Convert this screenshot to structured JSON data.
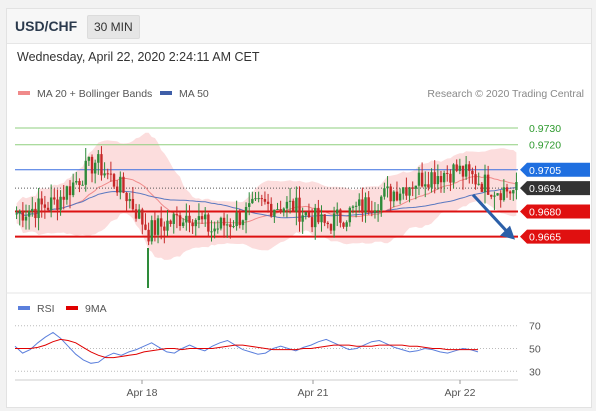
{
  "header": {
    "pair": "USD/CHF",
    "timeframe": "30 MIN"
  },
  "date_line": "Wednesday, April 22, 2020 2:24:11 AM CET",
  "legend": {
    "items": [
      {
        "label": "MA 20 + Bollinger Bands",
        "color": "#f08a8a"
      },
      {
        "label": "MA 50",
        "color": "#3f5fa8"
      }
    ],
    "credit": "Research © 2020 Trading Central"
  },
  "colors": {
    "bull": "#2e8b3a",
    "bear": "#c62828",
    "bb_fill": "#fbd5d5",
    "ma20": "#f08a8a",
    "ma50": "#5a78c0",
    "support": "#dd1111",
    "resistance_green": "#8fcf7f",
    "resistance_blue": "#3a6ee0",
    "last_price_bg": "#333333",
    "arrow": "#2b5fa8",
    "rsi": "#5b7fdc",
    "rsi_ma": "#e00000"
  },
  "chart_data": [
    {
      "type": "candlestick",
      "title": "USD/CHF 30 MIN",
      "ylim": [
        0.9636,
        0.9742
      ],
      "x_ticks": [
        "Apr 18",
        "Apr 21",
        "Apr 22"
      ],
      "levels": [
        {
          "value": 0.973,
          "label": "0.9730",
          "kind": "resistance"
        },
        {
          "value": 0.972,
          "label": "0.9720",
          "kind": "resistance"
        },
        {
          "value": 0.9705,
          "label": "0.9705",
          "kind": "pivot"
        },
        {
          "value": 0.9694,
          "label": "0.9694",
          "kind": "last"
        },
        {
          "value": 0.968,
          "label": "0.9680",
          "kind": "support"
        },
        {
          "value": 0.9665,
          "label": "0.9665",
          "kind": "support"
        }
      ],
      "forecast": {
        "from": 0.969,
        "to": 0.9665
      },
      "series": [
        {
          "name": "MA 20 + Bollinger Bands"
        },
        {
          "name": "MA 50"
        }
      ]
    },
    {
      "type": "line",
      "y_ticks": [
        "70",
        "50",
        "30"
      ],
      "ylim": [
        25,
        75
      ],
      "series": [
        {
          "name": "RSI",
          "values": [
            52,
            46,
            49,
            55,
            60,
            64,
            59,
            52,
            45,
            40,
            37,
            38,
            43,
            46,
            44,
            47,
            49,
            52,
            55,
            51,
            47,
            46,
            50,
            53,
            50,
            48,
            52,
            55,
            57,
            53,
            49,
            47,
            45,
            46,
            50,
            52,
            50,
            48,
            51,
            53,
            56,
            58,
            55,
            52,
            49,
            50,
            53,
            56,
            57,
            54,
            51,
            49,
            47,
            48,
            50,
            49,
            47,
            46,
            48,
            50,
            49,
            47
          ]
        },
        {
          "name": "9MA",
          "values": [
            50,
            50,
            50,
            51,
            53,
            56,
            58,
            57,
            55,
            51,
            47,
            44,
            42,
            42,
            43,
            44,
            45,
            47,
            48,
            49,
            50,
            50,
            49,
            50,
            50,
            50,
            50,
            51,
            52,
            53,
            53,
            52,
            51,
            50,
            49,
            49,
            49,
            49,
            50,
            50,
            51,
            52,
            53,
            53,
            53,
            52,
            52,
            52,
            53,
            53,
            53,
            53,
            52,
            52,
            51,
            50,
            50,
            49,
            49,
            49,
            49,
            49
          ]
        }
      ]
    }
  ]
}
